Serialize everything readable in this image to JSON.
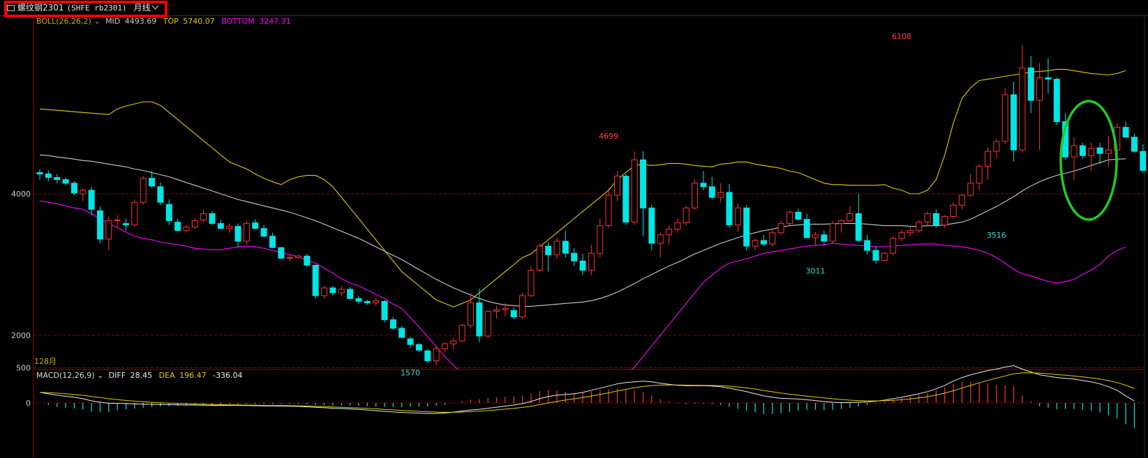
{
  "header": {
    "window_icon": "window-icon",
    "name": "螺纹钢2301",
    "symbol": "(SHFE rb2301)",
    "period": "月线",
    "dropdown_icon": "chevron-down-icon"
  },
  "boll": {
    "label": "BOLL(26,26,2)",
    "mid_label": "MID",
    "mid_value": "4493.69",
    "top_label": "TOP",
    "top_value": "5740.07",
    "bottom_label": "BOTTOM",
    "bottom_value": "3247.31",
    "colors": {
      "label": "#c8b400",
      "mid": "#cccccc",
      "top": "#e0d000",
      "bottom": "#ff00ff"
    }
  },
  "macd": {
    "label": "MACD(12,26,9)",
    "diff_label": "DIFF",
    "diff_value": "28.45",
    "dea_label": "DEA",
    "dea_value": "196.47",
    "macd_value": "-336.04"
  },
  "scale_note": "128月",
  "colors": {
    "up": "#ff3232",
    "down": "#00e5e5",
    "grid": "#8b0000",
    "highlight": "#22cc22"
  },
  "chart_data": {
    "type": "candlestick",
    "price_ticks": [
      2000,
      4000
    ],
    "macd_ticks": [
      0,
      500
    ],
    "annotations": [
      {
        "text": "6108",
        "bar": 100,
        "value": 6108,
        "kind": "high"
      },
      {
        "text": "4699",
        "bar": 66,
        "value": 4699,
        "kind": "high"
      },
      {
        "text": "1570",
        "bar": 43,
        "value": 1570,
        "kind": "low"
      },
      {
        "text": "3011",
        "bar": 90,
        "value": 3011,
        "kind": "low"
      },
      {
        "text": "3516",
        "bar": 111,
        "value": 3516,
        "kind": "low"
      }
    ],
    "candles": [
      [
        4300,
        4350,
        4200,
        4280
      ],
      [
        4280,
        4330,
        4180,
        4230
      ],
      [
        4230,
        4280,
        4150,
        4200
      ],
      [
        4200,
        4230,
        4120,
        4150
      ],
      [
        4150,
        4180,
        3980,
        4010
      ],
      [
        4000,
        4080,
        3900,
        4050
      ],
      [
        4050,
        4100,
        3700,
        3780
      ],
      [
        3760,
        3820,
        3300,
        3360
      ],
      [
        3360,
        3680,
        3200,
        3620
      ],
      [
        3620,
        3700,
        3530,
        3630
      ],
      [
        3580,
        3650,
        3480,
        3560
      ],
      [
        3560,
        3920,
        3540,
        3880
      ],
      [
        3880,
        4250,
        3850,
        4220
      ],
      [
        4220,
        4320,
        4090,
        4110
      ],
      [
        4100,
        4160,
        3840,
        3880
      ],
      [
        3850,
        3920,
        3560,
        3620
      ],
      [
        3600,
        3650,
        3480,
        3480
      ],
      [
        3480,
        3560,
        3450,
        3530
      ],
      [
        3530,
        3660,
        3500,
        3620
      ],
      [
        3630,
        3780,
        3600,
        3720
      ],
      [
        3720,
        3760,
        3560,
        3580
      ],
      [
        3580,
        3630,
        3500,
        3510
      ],
      [
        3510,
        3580,
        3450,
        3540
      ],
      [
        3540,
        3580,
        3240,
        3330
      ],
      [
        3330,
        3620,
        3280,
        3580
      ],
      [
        3590,
        3640,
        3500,
        3510
      ],
      [
        3510,
        3560,
        3390,
        3400
      ],
      [
        3400,
        3450,
        3230,
        3240
      ],
      [
        3240,
        3250,
        3080,
        3090
      ],
      [
        3090,
        3140,
        3040,
        3100
      ],
      [
        3100,
        3140,
        3080,
        3120
      ],
      [
        3120,
        3150,
        2960,
        2990
      ],
      [
        2990,
        3000,
        2520,
        2560
      ],
      [
        2560,
        2700,
        2520,
        2670
      ],
      [
        2670,
        2700,
        2560,
        2600
      ],
      [
        2600,
        2700,
        2560,
        2650
      ],
      [
        2650,
        2680,
        2510,
        2520
      ],
      [
        2520,
        2560,
        2440,
        2480
      ],
      [
        2480,
        2500,
        2430,
        2460
      ],
      [
        2460,
        2520,
        2420,
        2490
      ],
      [
        2480,
        2500,
        2180,
        2220
      ],
      [
        2220,
        2260,
        2080,
        2100
      ],
      [
        2100,
        2130,
        1960,
        1970
      ],
      [
        1950,
        1980,
        1820,
        1870
      ],
      [
        1870,
        1890,
        1760,
        1790
      ],
      [
        1780,
        1810,
        1610,
        1640
      ],
      [
        1640,
        1850,
        1570,
        1810
      ],
      [
        1810,
        1900,
        1770,
        1880
      ],
      [
        1880,
        1960,
        1800,
        1920
      ],
      [
        1920,
        2160,
        1900,
        2140
      ],
      [
        2140,
        2600,
        2100,
        2460
      ],
      [
        2460,
        2660,
        1900,
        1990
      ],
      [
        1990,
        2360,
        1960,
        2340
      ],
      [
        2340,
        2420,
        2240,
        2360
      ],
      [
        2360,
        2450,
        2260,
        2380
      ],
      [
        2350,
        2400,
        2230,
        2260
      ],
      [
        2260,
        2600,
        2230,
        2560
      ],
      [
        2560,
        2980,
        2540,
        2920
      ],
      [
        2920,
        3300,
        2900,
        3260
      ],
      [
        3260,
        3320,
        2900,
        3140
      ],
      [
        3140,
        3380,
        3080,
        3330
      ],
      [
        3330,
        3480,
        3100,
        3160
      ],
      [
        3160,
        3230,
        2980,
        3050
      ],
      [
        3050,
        3150,
        2850,
        2920
      ],
      [
        2920,
        3280,
        2850,
        3160
      ],
      [
        3160,
        3650,
        3100,
        3550
      ],
      [
        3550,
        4080,
        3520,
        3980
      ],
      [
        3980,
        4320,
        3900,
        4250
      ],
      [
        4250,
        4280,
        3560,
        3600
      ],
      [
        3600,
        4600,
        3560,
        4480
      ],
      [
        4480,
        4600,
        3400,
        3800
      ],
      [
        3800,
        3850,
        3200,
        3300
      ],
      [
        3300,
        3450,
        3100,
        3420
      ],
      [
        3420,
        3550,
        3280,
        3500
      ],
      [
        3500,
        3650,
        3450,
        3590
      ],
      [
        3590,
        3830,
        3550,
        3800
      ],
      [
        3800,
        4200,
        3780,
        4150
      ],
      [
        4150,
        4320,
        4050,
        4100
      ],
      [
        4100,
        4240,
        3920,
        3950
      ],
      [
        3950,
        4150,
        3880,
        4020
      ],
      [
        4020,
        4140,
        3520,
        3560
      ],
      [
        3560,
        3860,
        3460,
        3800
      ],
      [
        3800,
        3840,
        3200,
        3260
      ],
      [
        3260,
        3370,
        3200,
        3340
      ],
      [
        3340,
        3420,
        3260,
        3290
      ],
      [
        3290,
        3480,
        3250,
        3450
      ],
      [
        3450,
        3620,
        3420,
        3580
      ],
      [
        3580,
        3760,
        3550,
        3740
      ],
      [
        3740,
        3790,
        3620,
        3640
      ],
      [
        3640,
        3720,
        3370,
        3380
      ],
      [
        3380,
        3460,
        3280,
        3420
      ],
      [
        3420,
        3480,
        3260,
        3330
      ],
      [
        3330,
        3620,
        3300,
        3580
      ],
      [
        3580,
        3640,
        3450,
        3620
      ],
      [
        3620,
        3820,
        3600,
        3720
      ],
      [
        3720,
        4000,
        3320,
        3340
      ],
      [
        3340,
        3420,
        3140,
        3200
      ],
      [
        3200,
        3260,
        3010,
        3060
      ],
      [
        3060,
        3180,
        3040,
        3160
      ],
      [
        3160,
        3400,
        3130,
        3370
      ],
      [
        3370,
        3490,
        3330,
        3450
      ],
      [
        3450,
        3530,
        3400,
        3480
      ],
      [
        3480,
        3630,
        3450,
        3600
      ],
      [
        3600,
        3750,
        3550,
        3720
      ],
      [
        3720,
        3780,
        3520,
        3560
      ],
      [
        3560,
        3700,
        3520,
        3680
      ],
      [
        3680,
        3880,
        3650,
        3840
      ],
      [
        3840,
        4000,
        3780,
        3980
      ],
      [
        3980,
        4280,
        3950,
        4150
      ],
      [
        4150,
        4420,
        4050,
        4390
      ],
      [
        4390,
        4650,
        4200,
        4600
      ],
      [
        4600,
        4780,
        4500,
        4740
      ],
      [
        4740,
        5500,
        4700,
        5400
      ],
      [
        5400,
        5580,
        4460,
        4620
      ],
      [
        4620,
        6100,
        4580,
        5780
      ],
      [
        5780,
        5950,
        5140,
        5320
      ],
      [
        5320,
        5850,
        4620,
        5640
      ],
      [
        5640,
        5920,
        5420,
        5620
      ],
      [
        5620,
        5640,
        4970,
        5020
      ],
      [
        5020,
        5140,
        4480,
        4520
      ],
      [
        4520,
        4800,
        4200,
        4680
      ],
      [
        4680,
        4720,
        4500,
        4540
      ],
      [
        4540,
        4720,
        4320,
        4640
      ],
      [
        4650,
        4720,
        4420,
        4570
      ],
      [
        4570,
        4820,
        4380,
        4620
      ],
      [
        4620,
        5000,
        4580,
        4940
      ],
      [
        4940,
        5020,
        4790,
        4800
      ],
      [
        4800,
        4850,
        4580,
        4600
      ],
      [
        4600,
        4700,
        4300,
        4330
      ],
      [
        4330,
        4380,
        3560,
        3650
      ],
      [
        3650,
        3800,
        3516,
        3700
      ]
    ],
    "boll_mid": [
      4550,
      4540,
      4520,
      4505,
      4490,
      4470,
      4460,
      4440,
      4420,
      4400,
      4380,
      4350,
      4330,
      4300,
      4270,
      4240,
      4200,
      4160,
      4120,
      4080,
      4040,
      4000,
      3960,
      3920,
      3890,
      3860,
      3830,
      3800,
      3770,
      3740,
      3700,
      3660,
      3620,
      3570,
      3520,
      3470,
      3420,
      3370,
      3310,
      3250,
      3190,
      3130,
      3070,
      3000,
      2930,
      2860,
      2790,
      2730,
      2670,
      2620,
      2570,
      2520,
      2480,
      2450,
      2430,
      2420,
      2410,
      2410,
      2420,
      2430,
      2440,
      2450,
      2460,
      2470,
      2490,
      2520,
      2560,
      2610,
      2670,
      2730,
      2800,
      2860,
      2920,
      2980,
      3030,
      3090,
      3150,
      3200,
      3250,
      3300,
      3340,
      3380,
      3420,
      3450,
      3480,
      3500,
      3530,
      3550,
      3560,
      3570,
      3570,
      3570,
      3575,
      3580,
      3580,
      3580,
      3570,
      3560,
      3550,
      3550,
      3550,
      3540,
      3540,
      3550,
      3550,
      3560,
      3580,
      3600,
      3640,
      3700,
      3760,
      3820,
      3890,
      3960,
      4040,
      4110,
      4170,
      4220,
      4260,
      4290,
      4320,
      4360,
      4400,
      4440,
      4480,
      4490,
      4495
    ],
    "boll_top": [
      5200,
      5190,
      5180,
      5170,
      5160,
      5150,
      5140,
      5130,
      5120,
      5200,
      5240,
      5270,
      5300,
      5300,
      5250,
      5150,
      5050,
      4950,
      4850,
      4750,
      4650,
      4550,
      4450,
      4400,
      4350,
      4280,
      4220,
      4170,
      4130,
      4200,
      4240,
      4260,
      4260,
      4200,
      4100,
      3950,
      3800,
      3650,
      3500,
      3350,
      3200,
      3050,
      2900,
      2800,
      2700,
      2600,
      2500,
      2450,
      2400,
      2450,
      2500,
      2600,
      2700,
      2800,
      2900,
      3000,
      3100,
      3150,
      3250,
      3350,
      3450,
      3550,
      3650,
      3750,
      3850,
      3950,
      4050,
      4200,
      4300,
      4400,
      4420,
      4400,
      4410,
      4430,
      4430,
      4420,
      4400,
      4390,
      4380,
      4420,
      4430,
      4450,
      4450,
      4420,
      4400,
      4380,
      4360,
      4320,
      4300,
      4250,
      4200,
      4150,
      4130,
      4130,
      4120,
      4120,
      4120,
      4120,
      4130,
      4080,
      4050,
      4000,
      4000,
      4050,
      4200,
      4550,
      5000,
      5350,
      5500,
      5600,
      5620,
      5640,
      5660,
      5680,
      5700,
      5720,
      5730,
      5740,
      5760,
      5760,
      5740,
      5720,
      5700,
      5690,
      5680,
      5700,
      5740
    ],
    "boll_bottom": [
      3900,
      3880,
      3860,
      3830,
      3800,
      3780,
      3720,
      3640,
      3580,
      3520,
      3460,
      3400,
      3370,
      3350,
      3320,
      3300,
      3280,
      3260,
      3230,
      3220,
      3210,
      3210,
      3230,
      3250,
      3260,
      3250,
      3230,
      3200,
      3170,
      3140,
      3110,
      3060,
      3020,
      2950,
      2880,
      2800,
      2740,
      2700,
      2640,
      2580,
      2520,
      2440,
      2380,
      2250,
      2120,
      1980,
      1840,
      1700,
      1580,
      1460,
      1360,
      1280,
      1230,
      1200,
      1180,
      1160,
      1140,
      1140,
      1150,
      1160,
      1170,
      1180,
      1190,
      1200,
      1220,
      1250,
      1290,
      1350,
      1450,
      1550,
      1700,
      1850,
      2000,
      2150,
      2300,
      2450,
      2600,
      2750,
      2850,
      2950,
      3020,
      3050,
      3080,
      3120,
      3160,
      3180,
      3200,
      3220,
      3240,
      3260,
      3270,
      3280,
      3300,
      3290,
      3280,
      3270,
      3260,
      3250,
      3250,
      3260,
      3270,
      3280,
      3290,
      3290,
      3290,
      3270,
      3260,
      3250,
      3230,
      3200,
      3160,
      3100,
      3020,
      2930,
      2870,
      2840,
      2800,
      2760,
      2740,
      2760,
      2790,
      2860,
      2920,
      3000,
      3120,
      3200,
      3247
    ],
    "diff": [
      150,
      130,
      110,
      95,
      80,
      60,
      30,
      10,
      -5,
      -5,
      -10,
      -15,
      -18,
      -20,
      -22,
      -25,
      -28,
      -30,
      -30,
      -32,
      -35,
      -35,
      -35,
      -36,
      -38,
      -40,
      -42,
      -44,
      -45,
      -48,
      -50,
      -55,
      -62,
      -68,
      -75,
      -80,
      -85,
      -92,
      -100,
      -110,
      -120,
      -128,
      -135,
      -140,
      -145,
      -150,
      -150,
      -145,
      -130,
      -115,
      -100,
      -90,
      -75,
      -60,
      -45,
      -30,
      -10,
      20,
      60,
      90,
      110,
      120,
      130,
      150,
      180,
      210,
      240,
      270,
      290,
      300,
      310,
      300,
      280,
      265,
      250,
      245,
      245,
      245,
      240,
      230,
      210,
      185,
      160,
      130,
      100,
      80,
      65,
      60,
      55,
      45,
      35,
      20,
      10,
      5,
      5,
      10,
      15,
      25,
      40,
      60,
      80,
      105,
      130,
      160,
      200,
      250,
      310,
      360,
      400,
      430,
      460,
      480,
      510,
      530,
      480,
      440,
      400,
      380,
      360,
      350,
      340,
      320,
      300,
      270,
      230,
      180,
      100,
      28
    ]
  }
}
